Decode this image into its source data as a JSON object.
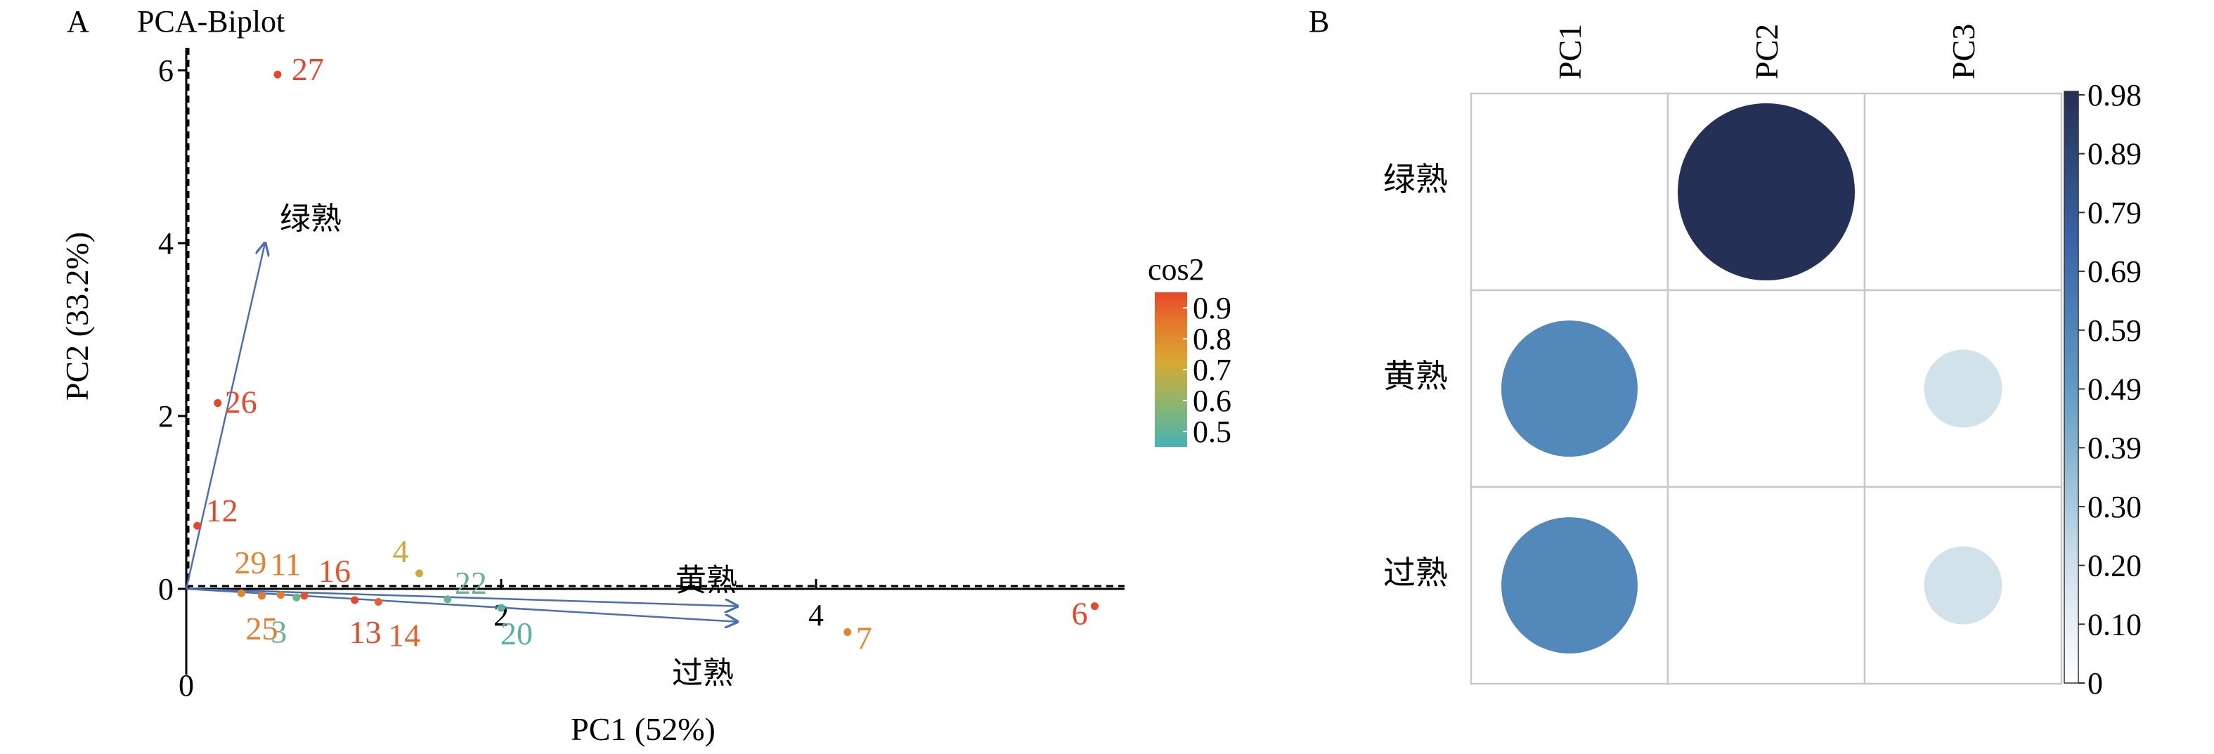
{
  "panel_a": {
    "panel_label": "A",
    "title": "PCA-Biplot",
    "legend_title": "cos2"
  },
  "panel_b": {
    "panel_label": "B"
  },
  "chart_data": [
    {
      "type": "scatter",
      "title": "PCA-Biplot",
      "xlabel": "PC1 (52%)",
      "ylabel": "PC2 (33.2%)",
      "xlim": [
        0,
        5.9
      ],
      "ylim": [
        -1.0,
        6.3
      ],
      "x_ticks": [
        0,
        2,
        4
      ],
      "y_ticks": [
        0,
        2,
        4,
        6
      ],
      "colorbar": {
        "title": "cos2",
        "ticks": [
          0.9,
          0.8,
          0.7,
          0.6,
          0.5
        ],
        "range": [
          0.45,
          0.95
        ]
      },
      "points": [
        {
          "label": "27",
          "x": 0.58,
          "y": 5.95,
          "cos2": 0.93
        },
        {
          "label": "26",
          "x": 0.2,
          "y": 2.15,
          "cos2": 0.93
        },
        {
          "label": "12",
          "x": 0.07,
          "y": 0.73,
          "cos2": 0.92
        },
        {
          "label": "29",
          "x": 0.35,
          "y": -0.05,
          "cos2": 0.78
        },
        {
          "label": "11",
          "x": 0.6,
          "y": -0.07,
          "cos2": 0.8
        },
        {
          "label": "16",
          "x": 0.75,
          "y": -0.08,
          "cos2": 0.88
        },
        {
          "label": "4",
          "x": 1.48,
          "y": 0.18,
          "cos2": 0.68
        },
        {
          "label": "22",
          "x": 1.66,
          "y": -0.12,
          "cos2": 0.55
        },
        {
          "label": "25",
          "x": 0.48,
          "y": -0.08,
          "cos2": 0.8
        },
        {
          "label": "3",
          "x": 0.7,
          "y": -0.1,
          "cos2": 0.55
        },
        {
          "label": "13",
          "x": 1.07,
          "y": -0.13,
          "cos2": 0.9
        },
        {
          "label": "14",
          "x": 1.22,
          "y": -0.15,
          "cos2": 0.85
        },
        {
          "label": "20",
          "x": 2.0,
          "y": -0.22,
          "cos2": 0.52
        },
        {
          "label": "7",
          "x": 4.2,
          "y": -0.5,
          "cos2": 0.78
        },
        {
          "label": "6",
          "x": 5.77,
          "y": -0.2,
          "cos2": 0.93
        }
      ],
      "vectors": [
        {
          "label": "绿熟",
          "x": 0.5,
          "y": 4.0
        },
        {
          "label": "黄熟",
          "x": 3.5,
          "y": -0.2
        },
        {
          "label": "过熟",
          "x": 3.5,
          "y": -0.38
        }
      ]
    },
    {
      "type": "heatmap",
      "columns": [
        "PC1",
        "PC2",
        "PC3"
      ],
      "rows": [
        "绿熟",
        "黄熟",
        "过熟"
      ],
      "values": [
        [
          0.0,
          0.98,
          0.0
        ],
        [
          0.58,
          0.0,
          0.19
        ],
        [
          0.58,
          0.0,
          0.19
        ]
      ],
      "colorbar": {
        "ticks": [
          "0.98",
          "0.89",
          "0.79",
          "0.69",
          "0.59",
          "0.49",
          "0.39",
          "0.30",
          "0.20",
          "0.10",
          "0"
        ],
        "range": [
          0,
          0.98
        ]
      }
    }
  ]
}
